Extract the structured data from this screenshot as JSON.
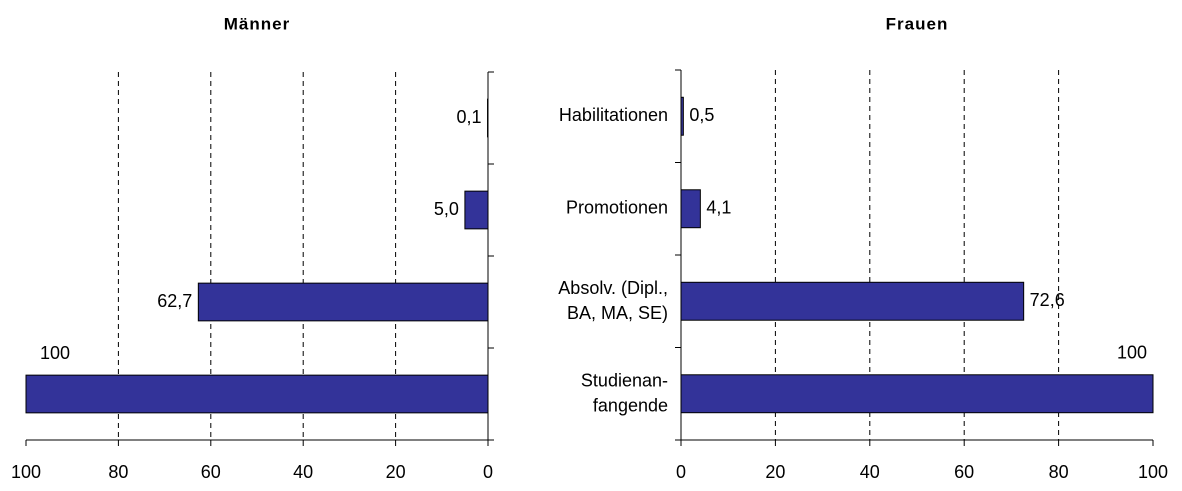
{
  "chart_data": [
    {
      "type": "bar",
      "title": "Männer",
      "values": [
        0.1,
        5.0,
        62.7,
        100
      ],
      "value_labels": [
        "0,1",
        "5,0",
        "62,7",
        "100"
      ],
      "color": "#333399",
      "xlim": [
        100,
        0
      ],
      "xticks": [
        100,
        80,
        60,
        40,
        20,
        0
      ],
      "grid": true
    },
    {
      "type": "bar",
      "title": "Frauen",
      "categories": [
        "Habilitationen",
        "Promotionen",
        "Absolv. (Dipl.,\nBA, MA, SE)",
        "Studienan-\nfangende"
      ],
      "values": [
        0.5,
        4.1,
        72.6,
        100
      ],
      "value_labels": [
        "0,5",
        "4,1",
        "72,6",
        "100"
      ],
      "color": "#333399",
      "xlim": [
        0,
        100
      ],
      "xticks": [
        0,
        20,
        40,
        60,
        80,
        100
      ],
      "grid": true
    }
  ]
}
